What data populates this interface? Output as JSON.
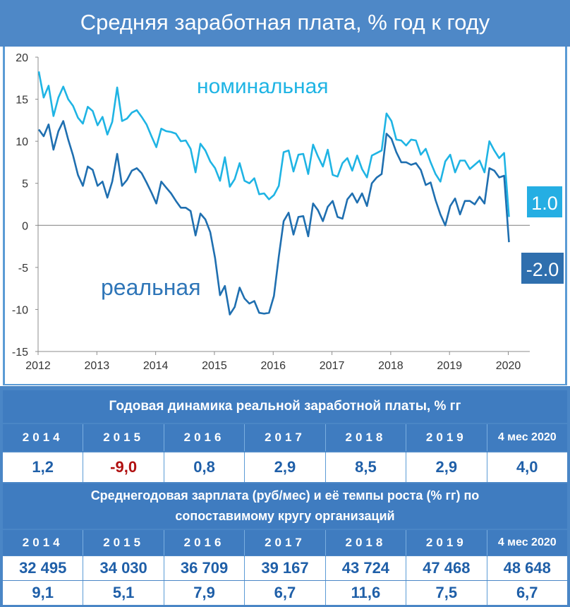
{
  "title": "Средняя заработная плата, % год к году",
  "chart_data": {
    "type": "line",
    "title": "Средняя заработная плата, % год к году",
    "xlabel": "",
    "ylabel": "",
    "ylim": [
      -15,
      20
    ],
    "yticks": [
      "20",
      "15",
      "10",
      "5",
      "0",
      "-5",
      "-10",
      "-15"
    ],
    "xticks": [
      "2012",
      "2013",
      "2014",
      "2015",
      "2016",
      "2017",
      "2018",
      "2019",
      "2020"
    ],
    "grid": "horizontal zero line only",
    "x_start": "2012-01",
    "series": [
      {
        "name": "номинальная",
        "color": "#1fb4e4",
        "end_label": "1.0",
        "values": [
          18.3,
          15.2,
          16.6,
          13.0,
          15.2,
          16.5,
          15.0,
          14.2,
          12.8,
          12.1,
          14.1,
          13.6,
          11.9,
          12.9,
          10.8,
          12.3,
          16.4,
          12.4,
          12.7,
          13.4,
          13.7,
          12.9,
          12.0,
          10.6,
          9.3,
          11.5,
          11.2,
          11.1,
          10.9,
          10.0,
          10.1,
          9.1,
          6.3,
          9.7,
          8.9,
          7.6,
          6.8,
          5.3,
          8.1,
          4.6,
          5.5,
          7.4,
          5.3,
          5.0,
          5.6,
          3.7,
          3.8,
          3.1,
          3.6,
          4.7,
          8.7,
          8.9,
          6.4,
          8.4,
          8.5,
          6.1,
          9.6,
          8.2,
          7.0,
          9.0,
          6.0,
          5.8,
          7.4,
          8.0,
          6.5,
          8.3,
          6.7,
          5.7,
          8.3,
          8.6,
          8.9,
          13.3,
          12.4,
          10.2,
          10.1,
          9.5,
          10.2,
          10.1,
          8.4,
          9.1,
          7.5,
          6.1,
          5.2,
          7.6,
          8.4,
          6.3,
          7.7,
          7.7,
          6.7,
          7.2,
          7.7,
          6.3,
          10.0,
          8.9,
          8.0,
          8.6,
          1.0
        ]
      },
      {
        "name": "реальная",
        "color": "#1f6fb0",
        "end_label": "-2.0",
        "values": [
          11.4,
          10.6,
          12.0,
          9.0,
          11.2,
          12.4,
          10.2,
          8.3,
          6.0,
          4.7,
          7.0,
          6.6,
          4.7,
          5.2,
          3.3,
          5.2,
          8.5,
          4.7,
          5.4,
          6.5,
          6.8,
          6.2,
          5.1,
          3.9,
          2.6,
          5.2,
          4.5,
          3.8,
          2.9,
          2.1,
          2.1,
          1.7,
          -1.2,
          1.4,
          0.7,
          -0.8,
          -3.9,
          -8.3,
          -7.2,
          -10.6,
          -9.7,
          -7.4,
          -8.7,
          -9.3,
          -9.0,
          -10.4,
          -10.5,
          -10.4,
          -8.4,
          -3.7,
          0.5,
          1.5,
          -1.1,
          1.0,
          1.1,
          -1.3,
          2.6,
          1.8,
          0.5,
          2.2,
          2.9,
          1.0,
          0.8,
          3.1,
          3.8,
          2.7,
          3.8,
          2.3,
          5.0,
          5.7,
          6.1,
          10.9,
          10.3,
          8.7,
          7.5,
          7.5,
          7.2,
          7.4,
          6.6,
          4.8,
          5.1,
          3.0,
          1.3,
          0.0,
          2.3,
          3.2,
          1.3,
          2.9,
          2.9,
          2.5,
          3.4,
          2.6,
          6.8,
          6.5,
          5.7,
          5.9,
          -2.0
        ]
      }
    ],
    "annotations": [
      "номинальная",
      "реальная"
    ]
  },
  "table1": {
    "title": "Годовая динамика реальной заработной платы, % гг",
    "years": [
      "2014",
      "2015",
      "2016",
      "2017",
      "2018",
      "2019",
      "4 мес 2020"
    ],
    "values": [
      "1,2",
      "-9,0",
      "0,8",
      "2,9",
      "8,5",
      "2,9",
      "4,0"
    ]
  },
  "table2": {
    "title_line1": "Среднегодовая зарплата (руб/мес) и её темпы роста (% гг)  по",
    "title_line2": "сопоставимому кругу организаций",
    "years": [
      "2014",
      "2015",
      "2016",
      "2017",
      "2018",
      "2019",
      "4 мес 2020"
    ],
    "salary": [
      "32 495",
      "34 030",
      "36 709",
      "39 167",
      "43 724",
      "47 468",
      "48 648"
    ],
    "growth": [
      "9,1",
      "5,1",
      "7,9",
      "6,7",
      "11,6",
      "7,5",
      "6,7"
    ]
  }
}
